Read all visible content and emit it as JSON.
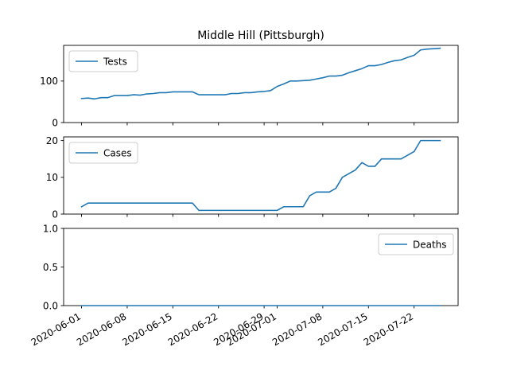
{
  "chart_data": {
    "type": "line",
    "title": "Middle Hill (Pittsburgh)",
    "x_tick_labels": [
      "2020-06-01",
      "2020-06-08",
      "2020-06-15",
      "2020-06-22",
      "2020-06-29",
      "2020-07-01",
      "2020-07-08",
      "2020-07-15",
      "2020-07-22"
    ],
    "x_dates": [
      "2020-06-01",
      "2020-06-02",
      "2020-06-03",
      "2020-06-04",
      "2020-06-05",
      "2020-06-06",
      "2020-06-07",
      "2020-06-08",
      "2020-06-09",
      "2020-06-10",
      "2020-06-11",
      "2020-06-12",
      "2020-06-13",
      "2020-06-14",
      "2020-06-15",
      "2020-06-16",
      "2020-06-17",
      "2020-06-18",
      "2020-06-19",
      "2020-06-20",
      "2020-06-21",
      "2020-06-22",
      "2020-06-23",
      "2020-06-24",
      "2020-06-25",
      "2020-06-26",
      "2020-06-27",
      "2020-06-28",
      "2020-06-29",
      "2020-06-30",
      "2020-07-01",
      "2020-07-02",
      "2020-07-03",
      "2020-07-04",
      "2020-07-05",
      "2020-07-06",
      "2020-07-07",
      "2020-07-08",
      "2020-07-09",
      "2020-07-10",
      "2020-07-11",
      "2020-07-12",
      "2020-07-13",
      "2020-07-14",
      "2020-07-15",
      "2020-07-16",
      "2020-07-17",
      "2020-07-18",
      "2020-07-19",
      "2020-07-20",
      "2020-07-21",
      "2020-07-22",
      "2020-07-23",
      "2020-07-24",
      "2020-07-25",
      "2020-07-26"
    ],
    "color": "#1f77b4",
    "grid": false,
    "panels": [
      {
        "name": "Tests",
        "ylim": [
          0,
          186
        ],
        "yticks": [
          0,
          100
        ],
        "ytick_labels": [
          "0",
          "100"
        ],
        "legend_loc": "upper-left",
        "values": [
          58,
          59,
          57,
          60,
          60,
          65,
          65,
          65,
          67,
          66,
          69,
          70,
          72,
          72,
          74,
          74,
          74,
          74,
          67,
          67,
          67,
          67,
          67,
          70,
          70,
          72,
          72,
          74,
          75,
          77,
          87,
          93,
          100,
          100,
          101,
          102,
          105,
          108,
          112,
          112,
          114,
          120,
          125,
          130,
          137,
          137,
          140,
          145,
          149,
          151,
          157,
          162,
          175,
          177,
          178,
          179
        ]
      },
      {
        "name": "Cases",
        "ylim": [
          0,
          21
        ],
        "yticks": [
          0,
          10,
          20
        ],
        "ytick_labels": [
          "0",
          "10",
          "20"
        ],
        "legend_loc": "upper-left",
        "values": [
          2,
          3,
          3,
          3,
          3,
          3,
          3,
          3,
          3,
          3,
          3,
          3,
          3,
          3,
          3,
          3,
          3,
          3,
          1,
          1,
          1,
          1,
          1,
          1,
          1,
          1,
          1,
          1,
          1,
          1,
          1,
          2,
          2,
          2,
          2,
          5,
          6,
          6,
          6,
          7,
          10,
          11,
          12,
          14,
          13,
          13,
          15,
          15,
          15,
          15,
          16,
          17,
          20,
          20,
          20,
          20
        ]
      },
      {
        "name": "Deaths",
        "ylim": [
          0,
          1
        ],
        "yticks": [
          0,
          0.5,
          1
        ],
        "ytick_labels": [
          "0.0",
          "0.5",
          "1.0"
        ],
        "legend_loc": "upper-right",
        "values": [
          0,
          0,
          0,
          0,
          0,
          0,
          0,
          0,
          0,
          0,
          0,
          0,
          0,
          0,
          0,
          0,
          0,
          0,
          0,
          0,
          0,
          0,
          0,
          0,
          0,
          0,
          0,
          0,
          0,
          0,
          0,
          0,
          0,
          0,
          0,
          0,
          0,
          0,
          0,
          0,
          0,
          0,
          0,
          0,
          0,
          0,
          0,
          0,
          0,
          0,
          0,
          0,
          0,
          0,
          0,
          0
        ]
      }
    ]
  }
}
